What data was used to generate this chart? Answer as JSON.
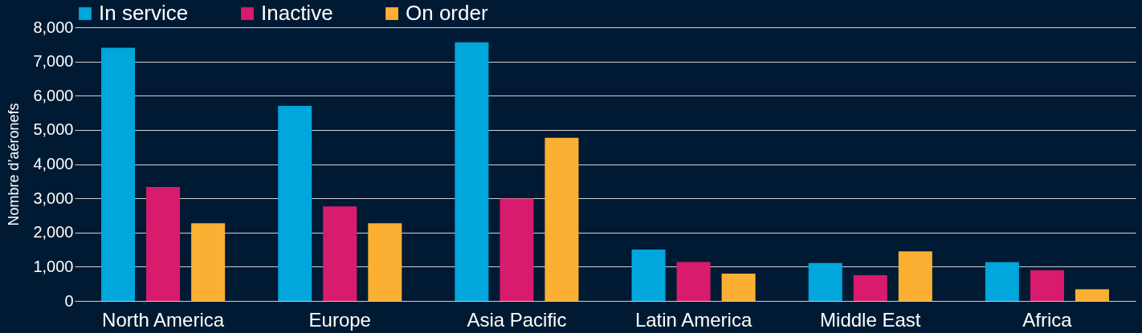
{
  "chart_data": {
    "type": "bar",
    "ylabel": "Nombre d’aéronefs",
    "categories": [
      "North America",
      "Europe",
      "Asia Pacific",
      "Latin America",
      "Middle East",
      "Africa"
    ],
    "series": [
      {
        "name": "In service",
        "color": "#00a6dc",
        "values": [
          7400,
          5700,
          7560,
          1500,
          1110,
          1130
        ]
      },
      {
        "name": "Inactive",
        "color": "#d81b6c",
        "values": [
          3330,
          2760,
          2990,
          1140,
          750,
          900
        ]
      },
      {
        "name": "On order",
        "color": "#fbb034",
        "values": [
          2270,
          2270,
          4770,
          800,
          1450,
          340
        ]
      }
    ],
    "ylim": [
      0,
      8000
    ],
    "yticks": [
      0,
      {
        "value": 1000,
        "label": "1,000"
      },
      {
        "value": 2000,
        "label": "2,000"
      },
      {
        "value": 3000,
        "label": "3,000"
      },
      {
        "value": 4000,
        "label": "4,000"
      },
      {
        "value": 5000,
        "label": "5,000"
      },
      {
        "value": 6000,
        "label": "6,000"
      },
      {
        "value": 7000,
        "label": "7,000"
      },
      {
        "value": 8000,
        "label": "8,000"
      }
    ],
    "grid": "y",
    "legend": "top"
  }
}
